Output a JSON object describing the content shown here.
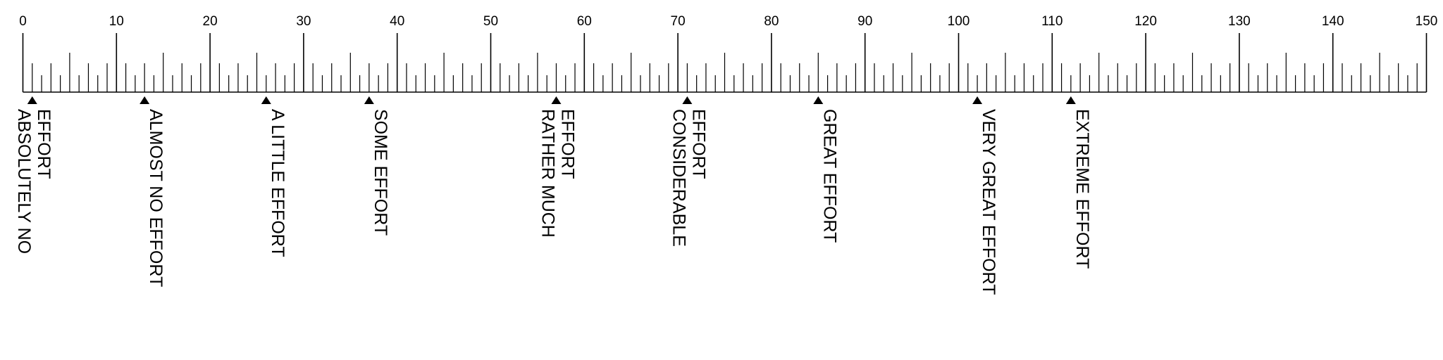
{
  "scale": {
    "min": 0,
    "max": 150,
    "major_step": 10,
    "medium_step": 5,
    "minor_step": 1,
    "tick_labels": [
      "0",
      "10",
      "20",
      "30",
      "40",
      "50",
      "60",
      "70",
      "80",
      "90",
      "100",
      "110",
      "120",
      "130",
      "140",
      "150"
    ],
    "color": "#000000",
    "background": "#ffffff"
  },
  "anchors": [
    {
      "value": 1,
      "lines": [
        "ABSOLUTELY NO",
        "EFFORT"
      ]
    },
    {
      "value": 13,
      "lines": [
        "ALMOST NO EFFORT"
      ]
    },
    {
      "value": 26,
      "lines": [
        "A LITTLE EFFORT"
      ]
    },
    {
      "value": 37,
      "lines": [
        "SOME EFFORT"
      ]
    },
    {
      "value": 57,
      "lines": [
        "RATHER MUCH",
        "EFFORT"
      ]
    },
    {
      "value": 71,
      "lines": [
        "CONSIDERABLE",
        "EFFORT"
      ]
    },
    {
      "value": 85,
      "lines": [
        "GREAT EFFORT"
      ]
    },
    {
      "value": 102,
      "lines": [
        "VERY GREAT EFFORT"
      ]
    },
    {
      "value": 112,
      "lines": [
        "EXTREME EFFORT"
      ]
    }
  ]
}
